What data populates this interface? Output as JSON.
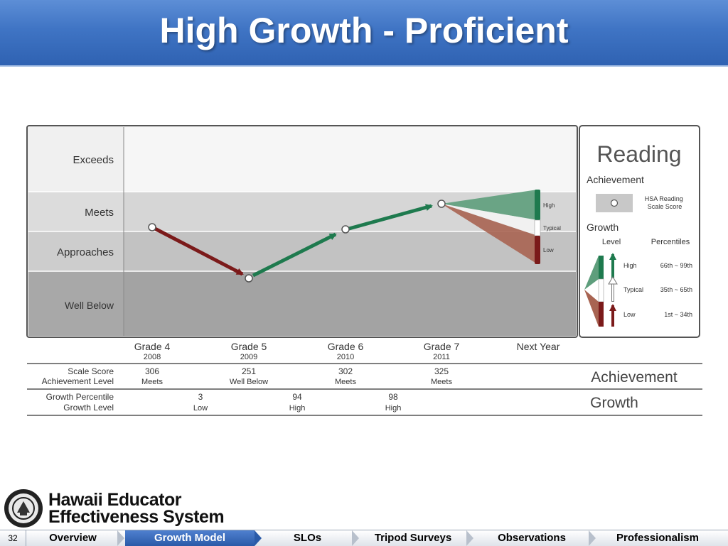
{
  "slide": {
    "title": "High Growth - Proficient",
    "page_number": "32"
  },
  "logo": {
    "line1": "Hawaii Educator",
    "line2": "Effectiveness System"
  },
  "nav": {
    "items": [
      "Overview",
      "Growth Model",
      "SLOs",
      "Tripod Surveys",
      "Observations",
      "Professionalism"
    ],
    "active": "Growth Model"
  },
  "chart_data": {
    "type": "line",
    "bands": [
      "Exceeds",
      "Meets",
      "Approaches",
      "Well Below"
    ],
    "categories": [
      {
        "label": "Grade 4",
        "year": "2008"
      },
      {
        "label": "Grade 5",
        "year": "2009"
      },
      {
        "label": "Grade 6",
        "year": "2010"
      },
      {
        "label": "Grade 7",
        "year": "2011"
      },
      {
        "label": "Next Year",
        "year": ""
      }
    ],
    "achievement": [
      {
        "scale_score": "306",
        "level": "Meets"
      },
      {
        "scale_score": "251",
        "level": "Well Below"
      },
      {
        "scale_score": "302",
        "level": "Meets"
      },
      {
        "scale_score": "325",
        "level": "Meets"
      }
    ],
    "growth": [
      {
        "percentile": "3",
        "level": "Low",
        "color": "#7b1a1a"
      },
      {
        "percentile": "94",
        "level": "High",
        "color": "#1e7a4e"
      },
      {
        "percentile": "98",
        "level": "High",
        "color": "#1e7a4e"
      }
    ],
    "projection_labels": [
      "High",
      "Typical",
      "Low"
    ],
    "table_labels": {
      "scale_score": "Scale Score",
      "achievement_level": "Achievement Level",
      "growth_percentile": "Growth Percentile",
      "growth_level": "Growth Level",
      "achievement": "Achievement",
      "growth": "Growth"
    },
    "colors": {
      "high": "#1e7a4e",
      "low": "#7b1a1a",
      "high_fan": "#5e9e7c",
      "low_fan": "#a86452"
    }
  },
  "legend": {
    "title": "Reading",
    "achievement_heading": "Achievement",
    "scale_label": "HSA Reading Scale Score",
    "growth_heading": "Growth",
    "col_level": "Level",
    "col_percentiles": "Percentiles",
    "rows": [
      {
        "level": "High",
        "range": "66th ~ 99th"
      },
      {
        "level": "Typical",
        "range": "35th ~ 65th"
      },
      {
        "level": "Low",
        "range": "1st ~ 34th"
      }
    ]
  }
}
